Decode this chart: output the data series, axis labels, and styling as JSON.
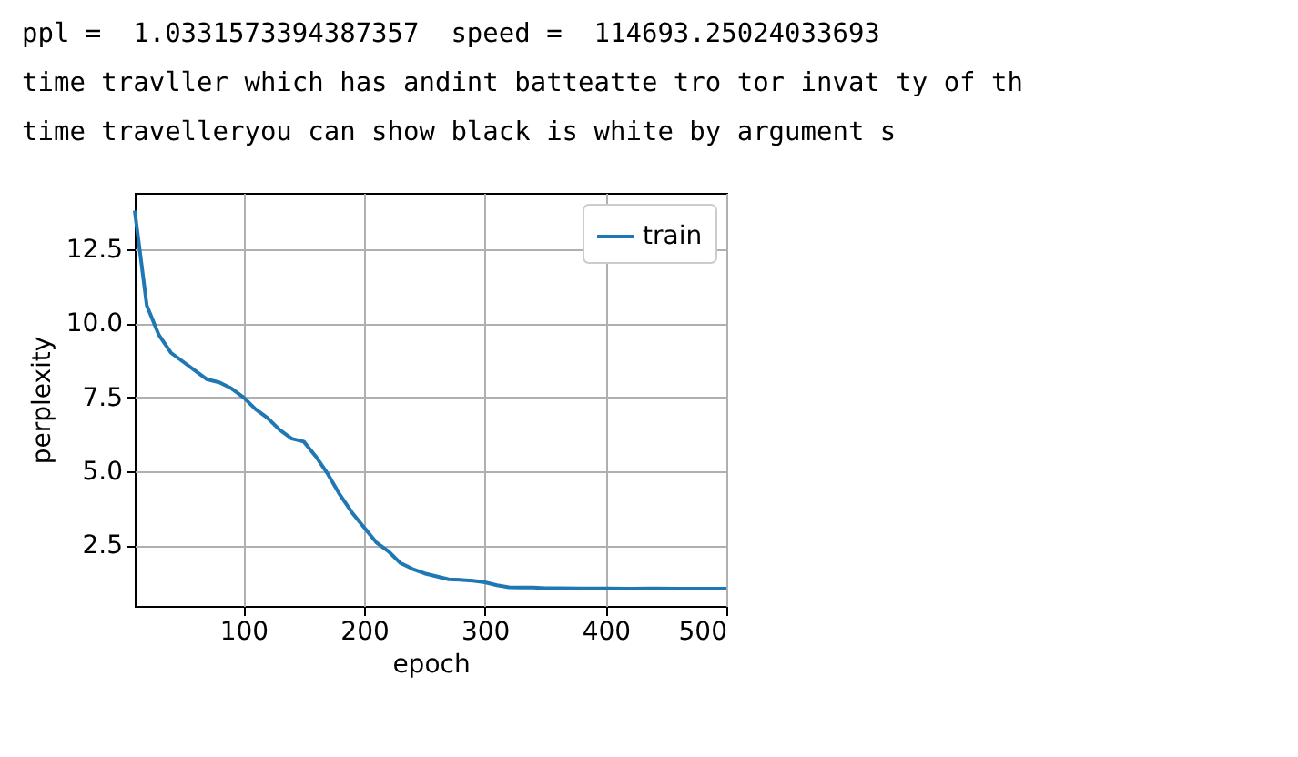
{
  "chart_data": {
    "type": "line",
    "annotations": [
      "ppl =  1.0331573394387357  speed =  114693.25024033693",
      "time travller which has andint batteatte tro tor invat ty of th",
      "time travelleryou can show black is white by argument s"
    ],
    "xlabel": "epoch",
    "ylabel": "perplexity",
    "x": [
      10,
      20,
      30,
      40,
      50,
      60,
      70,
      80,
      90,
      100,
      110,
      120,
      130,
      140,
      150,
      160,
      170,
      180,
      190,
      200,
      210,
      220,
      230,
      240,
      250,
      260,
      270,
      280,
      290,
      300,
      310,
      320,
      330,
      340,
      350,
      360,
      380,
      400,
      420,
      440,
      460,
      480,
      500
    ],
    "series": [
      {
        "name": "train",
        "color": "#1f77b4",
        "values": [
          13.8,
          10.6,
          9.6,
          9.0,
          8.7,
          8.4,
          8.1,
          8.0,
          7.8,
          7.5,
          7.1,
          6.8,
          6.4,
          6.1,
          6.0,
          5.5,
          4.9,
          4.2,
          3.6,
          3.1,
          2.6,
          2.3,
          1.9,
          1.7,
          1.55,
          1.45,
          1.35,
          1.33,
          1.3,
          1.25,
          1.15,
          1.08,
          1.07,
          1.07,
          1.05,
          1.05,
          1.04,
          1.04,
          1.03,
          1.04,
          1.03,
          1.03,
          1.03
        ]
      }
    ],
    "xlim": [
      10,
      500
    ],
    "ylim": [
      0.45,
      14.4
    ],
    "xticks": [
      100,
      200,
      300,
      400,
      500
    ],
    "yticks": [
      {
        "value": 2.5,
        "label": "2.5"
      },
      {
        "value": 5,
        "label": "5.0"
      },
      {
        "value": 7.5,
        "label": "7.5"
      },
      {
        "value": 10,
        "label": "10.0"
      },
      {
        "value": 12.5,
        "label": "12.5"
      }
    ],
    "grid": true,
    "legend": "top right",
    "marker": "none",
    "line_style": "solid"
  }
}
